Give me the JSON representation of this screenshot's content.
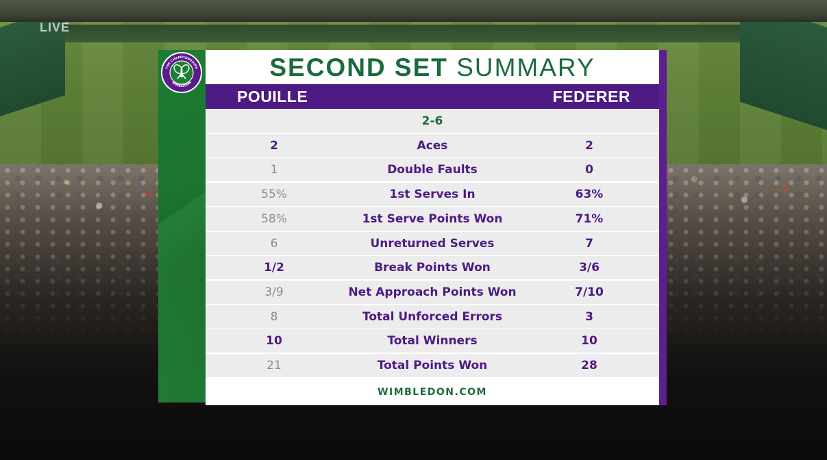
{
  "broadcast": {
    "bug": "LIVE"
  },
  "graphic": {
    "title_bold": "SECOND SET",
    "title_light": "SUMMARY",
    "player_left": "POUILLE",
    "player_right": "FEDERER",
    "set_score": "2-6",
    "footer": "WIMBLEDON.COM",
    "logo": {
      "icon": "wimbledon-crossed-rackets-icon",
      "text_top": "THE CHAMPIONSHIPS",
      "text_bottom": "WIMBLEDON"
    },
    "stats": [
      {
        "label": "Aces",
        "left": "2",
        "right": "2",
        "left_highlight": true,
        "right_highlight": true
      },
      {
        "label": "Double Faults",
        "left": "1",
        "right": "0",
        "left_highlight": false,
        "right_highlight": true
      },
      {
        "label": "1st Serves In",
        "left": "55%",
        "right": "63%",
        "left_highlight": false,
        "right_highlight": true
      },
      {
        "label": "1st Serve Points Won",
        "left": "58%",
        "right": "71%",
        "left_highlight": false,
        "right_highlight": true
      },
      {
        "label": "Unreturned Serves",
        "left": "6",
        "right": "7",
        "left_highlight": false,
        "right_highlight": true
      },
      {
        "label": "Break Points Won",
        "left": "1/2",
        "right": "3/6",
        "left_highlight": true,
        "right_highlight": true
      },
      {
        "label": "Net Approach Points Won",
        "left": "3/9",
        "right": "7/10",
        "left_highlight": false,
        "right_highlight": true
      },
      {
        "label": "Total Unforced Errors",
        "left": "8",
        "right": "3",
        "left_highlight": false,
        "right_highlight": true
      },
      {
        "label": "Total Winners",
        "left": "10",
        "right": "10",
        "left_highlight": true,
        "right_highlight": true
      },
      {
        "label": "Total Points Won",
        "left": "21",
        "right": "28",
        "left_highlight": false,
        "right_highlight": true
      }
    ]
  },
  "colors": {
    "purple": "#4e1a84",
    "green": "#1c6b3c",
    "muted": "#8c8c8c",
    "row_bg": "#ececec"
  }
}
